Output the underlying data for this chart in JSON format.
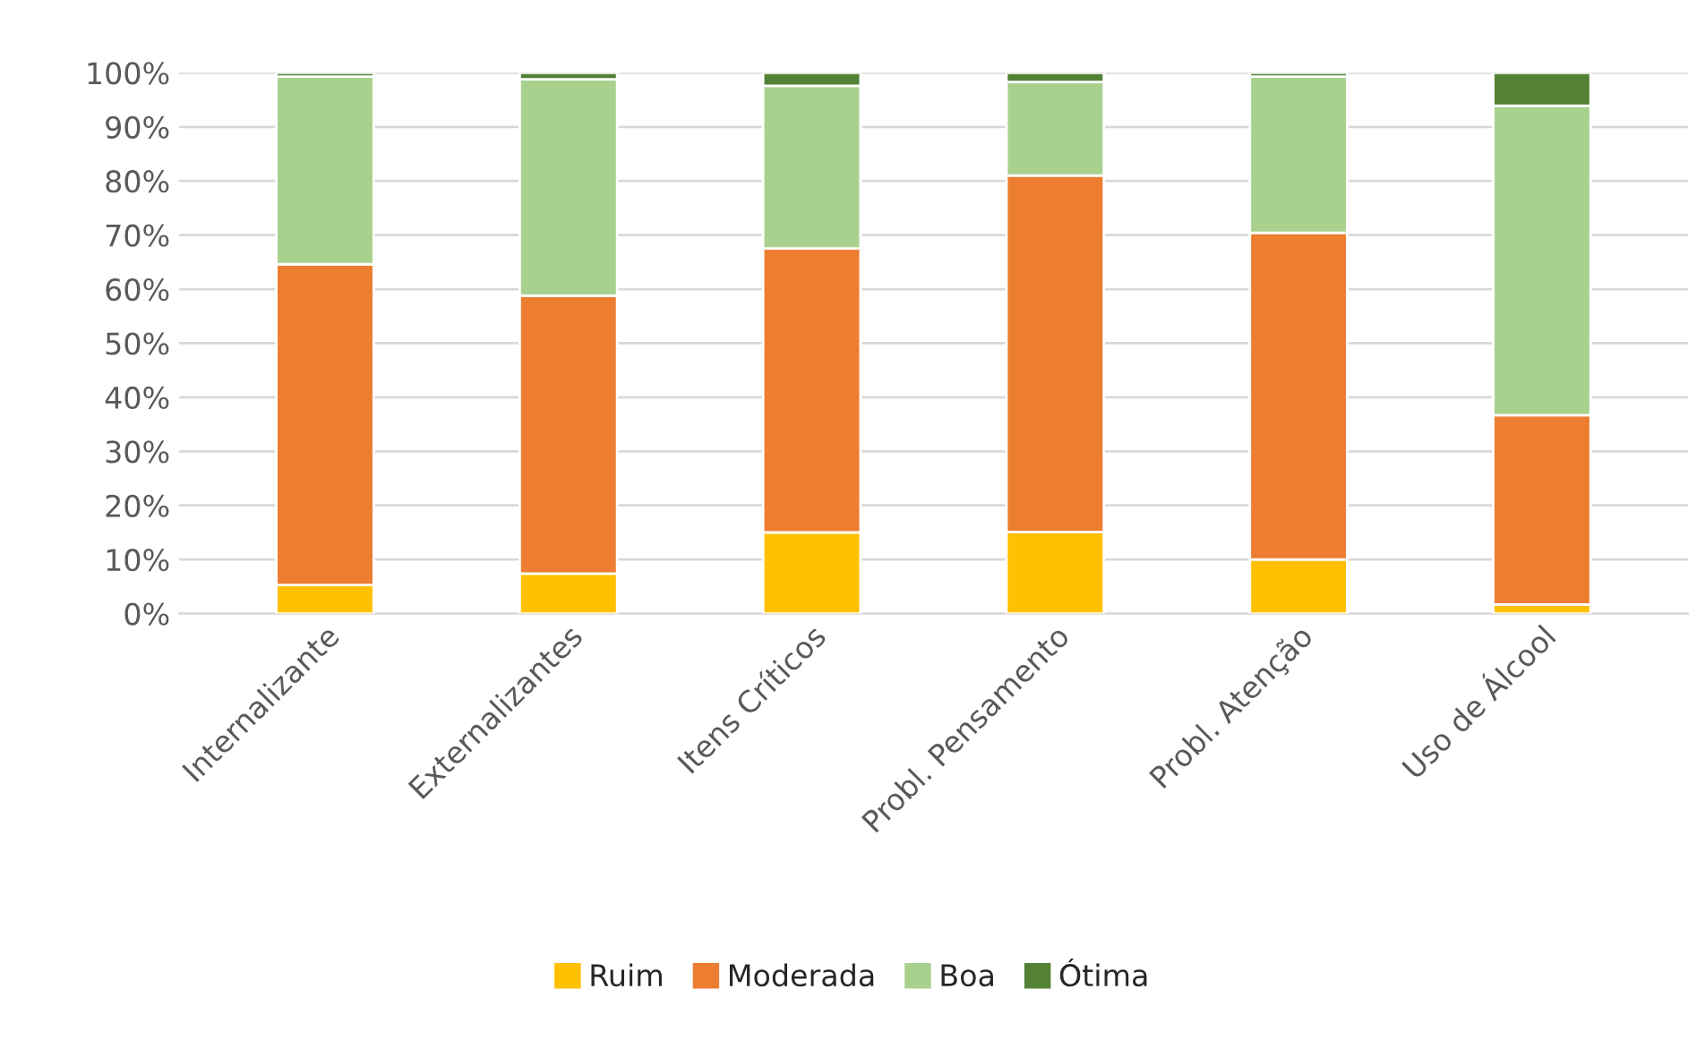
{
  "chart_data": {
    "type": "bar",
    "stacked": true,
    "categories": [
      "Internalizante",
      "Externalizantes",
      "Itens Críticos",
      "Probl. Pensamento",
      "Probl. Atenção",
      "Uso de Álcool"
    ],
    "series": [
      {
        "name": "Ruim",
        "color": "#ffc000",
        "values": [
          5.3,
          7.4,
          15.0,
          15.1,
          10.0,
          1.7
        ]
      },
      {
        "name": "Moderada",
        "color": "#ed7d31",
        "values": [
          59.3,
          51.4,
          52.5,
          65.9,
          60.4,
          35.0
        ]
      },
      {
        "name": "Boa",
        "color": "#a9d18e",
        "values": [
          34.7,
          40.0,
          30.1,
          17.3,
          28.9,
          57.2
        ]
      },
      {
        "name": "Ótima",
        "color": "#548235",
        "values": [
          0.7,
          1.2,
          2.4,
          1.7,
          0.7,
          6.1
        ]
      }
    ],
    "ylim": [
      0,
      100
    ],
    "yticks": [
      {
        "value": 0,
        "label": "0%"
      },
      {
        "value": 10,
        "label": "10%"
      },
      {
        "value": 20,
        "label": "20%"
      },
      {
        "value": 30,
        "label": "30%"
      },
      {
        "value": 40,
        "label": "40%"
      },
      {
        "value": 50,
        "label": "50%"
      },
      {
        "value": 60,
        "label": "60%"
      },
      {
        "value": 70,
        "label": "70%"
      },
      {
        "value": 80,
        "label": "80%"
      },
      {
        "value": 90,
        "label": "90%"
      },
      {
        "value": 100,
        "label": "100%"
      }
    ],
    "grid": "y",
    "legend": "bottom"
  }
}
